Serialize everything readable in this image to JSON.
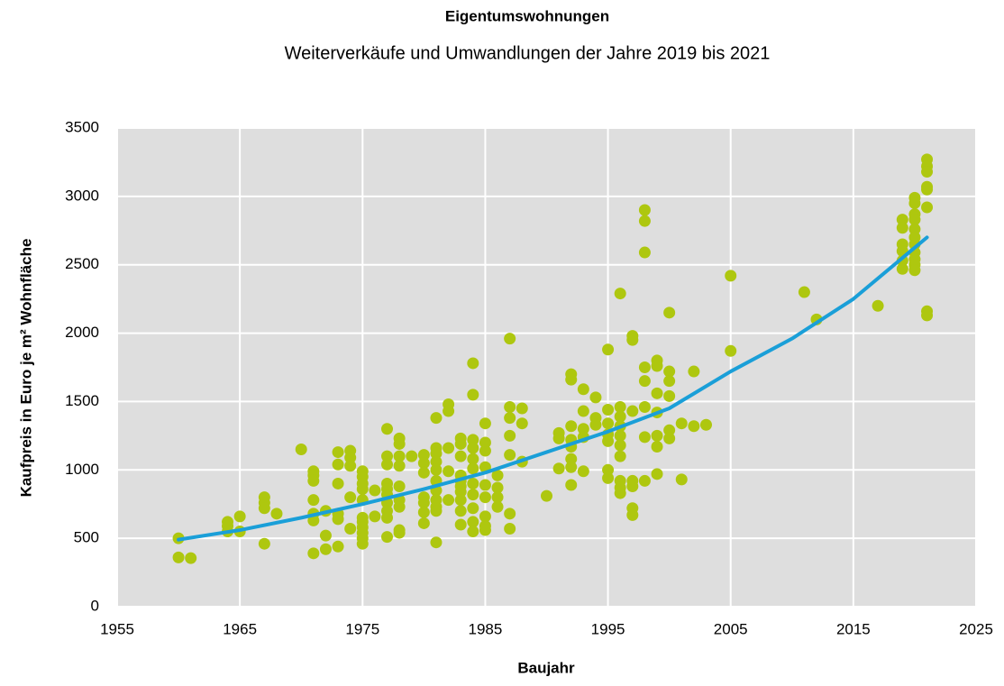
{
  "chart_data": {
    "type": "scatter",
    "title": "Eigentumswohnungen",
    "subtitle": "Weiterverkäufe und Umwandlungen der Jahre 2019 bis 2021",
    "xlabel": "Baujahr",
    "ylabel": "Kaufpreis in Euro je m² Wohnfläche",
    "xlim": [
      1955,
      2025
    ],
    "xticks": [
      1955,
      1965,
      1975,
      1985,
      1995,
      2005,
      2015,
      2025
    ],
    "ylim": [
      0,
      3500
    ],
    "yticks": [
      0,
      500,
      1000,
      1500,
      2000,
      2500,
      3000,
      3500
    ],
    "grid": true,
    "color": "#aec70f",
    "x": [
      1960,
      1960,
      1961,
      1964,
      1964,
      1964,
      1965,
      1965,
      1967,
      1967,
      1967,
      1967,
      1968,
      1970,
      1971,
      1971,
      1971,
      1971,
      1971,
      1971,
      1971,
      1972,
      1972,
      1972,
      1973,
      1973,
      1973,
      1973,
      1973,
      1973,
      1974,
      1974,
      1974,
      1974,
      1974,
      1975,
      1975,
      1975,
      1975,
      1975,
      1975,
      1975,
      1975,
      1975,
      1975,
      1975,
      1976,
      1976,
      1977,
      1977,
      1977,
      1977,
      1977,
      1977,
      1977,
      1977,
      1977,
      1977,
      1978,
      1978,
      1978,
      1978,
      1978,
      1978,
      1978,
      1978,
      1978,
      1979,
      1980,
      1980,
      1980,
      1980,
      1980,
      1980,
      1980,
      1981,
      1981,
      1981,
      1981,
      1981,
      1981,
      1981,
      1981,
      1981,
      1981,
      1981,
      1982,
      1982,
      1982,
      1982,
      1982,
      1983,
      1983,
      1983,
      1983,
      1983,
      1983,
      1983,
      1983,
      1983,
      1983,
      1984,
      1984,
      1984,
      1984,
      1984,
      1984,
      1984,
      1984,
      1984,
      1984,
      1984,
      1985,
      1985,
      1985,
      1985,
      1985,
      1985,
      1985,
      1985,
      1985,
      1986,
      1986,
      1986,
      1986,
      1987,
      1987,
      1987,
      1987,
      1987,
      1987,
      1987,
      1988,
      1988,
      1988,
      1990,
      1991,
      1991,
      1991,
      1992,
      1992,
      1992,
      1992,
      1992,
      1992,
      1992,
      1992,
      1993,
      1993,
      1993,
      1993,
      1993,
      1994,
      1994,
      1994,
      1995,
      1995,
      1995,
      1995,
      1995,
      1995,
      1995,
      1996,
      1996,
      1996,
      1996,
      1996,
      1996,
      1996,
      1996,
      1996,
      1996,
      1997,
      1997,
      1997,
      1997,
      1997,
      1997,
      1997,
      1998,
      1998,
      1998,
      1998,
      1998,
      1998,
      1998,
      1998,
      1999,
      1999,
      1999,
      1999,
      1999,
      1999,
      1999,
      2000,
      2000,
      2000,
      2000,
      2000,
      2000,
      2001,
      2001,
      2002,
      2002,
      2003,
      2005,
      2005,
      2011,
      2012,
      2017,
      2019,
      2019,
      2019,
      2019,
      2019,
      2019,
      2020,
      2020,
      2020,
      2020,
      2020,
      2020,
      2020,
      2020,
      2020,
      2020,
      2020,
      2021,
      2021,
      2021,
      2021,
      2021,
      2021,
      2021,
      2021
    ],
    "values": [
      500,
      360,
      355,
      620,
      590,
      550,
      660,
      550,
      800,
      760,
      720,
      460,
      680,
      1150,
      990,
      960,
      920,
      780,
      680,
      630,
      390,
      700,
      420,
      520,
      1130,
      1040,
      900,
      680,
      640,
      440,
      1140,
      1090,
      1030,
      800,
      570,
      990,
      950,
      900,
      860,
      780,
      650,
      620,
      580,
      540,
      500,
      460,
      850,
      660,
      1300,
      1100,
      1040,
      900,
      860,
      820,
      760,
      700,
      650,
      510,
      1230,
      1190,
      1100,
      1030,
      880,
      780,
      730,
      560,
      540,
      1100,
      1110,
      1050,
      980,
      800,
      760,
      690,
      610,
      1380,
      1160,
      1120,
      1060,
      1000,
      920,
      850,
      780,
      730,
      700,
      470,
      1480,
      1430,
      1160,
      990,
      780,
      1230,
      1190,
      1100,
      960,
      920,
      880,
      840,
      780,
      700,
      600,
      1780,
      1550,
      1220,
      1160,
      1080,
      1010,
      900,
      820,
      720,
      620,
      550,
      1340,
      1200,
      1140,
      1020,
      890,
      800,
      660,
      590,
      560,
      960,
      870,
      800,
      730,
      1960,
      1460,
      1380,
      1250,
      1110,
      680,
      570,
      1450,
      1340,
      1060,
      810,
      1270,
      1230,
      1010,
      1700,
      1660,
      1320,
      1220,
      1170,
      1080,
      1020,
      890,
      1590,
      1430,
      1300,
      1240,
      990,
      1530,
      1380,
      1330,
      1880,
      1440,
      1340,
      1260,
      1210,
      1000,
      940,
      2290,
      1460,
      1390,
      1320,
      1250,
      1180,
      1100,
      920,
      870,
      830,
      1980,
      1950,
      1430,
      920,
      880,
      720,
      670,
      2900,
      2820,
      2590,
      1750,
      1650,
      1460,
      1240,
      920,
      1800,
      1760,
      1560,
      1420,
      1250,
      1170,
      970,
      2150,
      1720,
      1650,
      1540,
      1290,
      1230,
      1340,
      930,
      1720,
      1320,
      1330,
      2420,
      1870,
      2300,
      2100,
      2200,
      2830,
      2770,
      2650,
      2600,
      2530,
      2470,
      2990,
      2950,
      2870,
      2830,
      2760,
      2700,
      2650,
      2590,
      2540,
      2500,
      2460,
      3270,
      3220,
      3180,
      3070,
      3050,
      2920,
      2160,
      2130
    ],
    "trend": {
      "color": "#1a9fd8",
      "x": [
        1960,
        1965,
        1970,
        1975,
        1980,
        1985,
        1990,
        1995,
        2000,
        2005,
        2010,
        2015,
        2021
      ],
      "values": [
        490,
        560,
        650,
        750,
        860,
        980,
        1130,
        1280,
        1450,
        1720,
        1960,
        2250,
        2700
      ]
    }
  }
}
